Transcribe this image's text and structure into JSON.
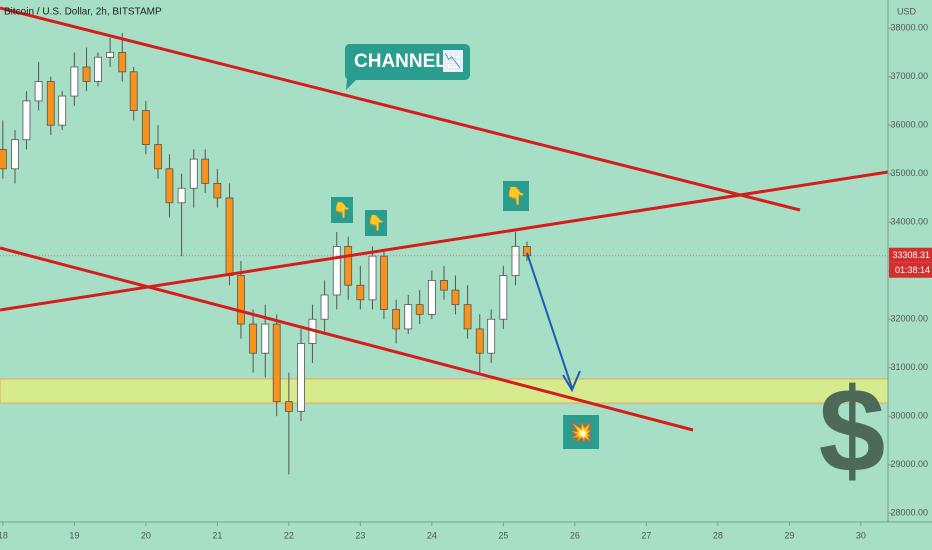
{
  "chart_data": {
    "type": "candlestick",
    "title": "Bitcoin / U.S. Dollar, 2h, BITSTAMP",
    "y_unit": "USD",
    "countdown": "01:38:14",
    "up_color": "#ffffff",
    "down_color": "#f7931a",
    "grid": false,
    "x": [
      18.0,
      18.17,
      18.33,
      18.5,
      18.67,
      18.83,
      19.0,
      19.17,
      19.33,
      19.5,
      19.67,
      19.83,
      20.0,
      20.17,
      20.33,
      20.5,
      20.67,
      20.83,
      21.0,
      21.17,
      21.33,
      21.5,
      21.67,
      21.83,
      22.0,
      22.17,
      22.33,
      22.5,
      22.67,
      22.83,
      23.0,
      23.17,
      23.33,
      23.5,
      23.67,
      23.83,
      24.0,
      24.17,
      24.33,
      24.5,
      24.67,
      24.83,
      25.0,
      25.17,
      25.33
    ],
    "open": [
      35500,
      35100,
      35700,
      36500,
      36900,
      36000,
      36600,
      37200,
      36900,
      37400,
      37500,
      37100,
      36300,
      35600,
      35100,
      34400,
      34700,
      35300,
      34800,
      34500,
      32900,
      31900,
      31300,
      31900,
      30300,
      30100,
      31500,
      32000,
      32500,
      33500,
      32700,
      32400,
      33300,
      32200,
      31800,
      32300,
      32100,
      32800,
      32600,
      32300,
      31800,
      31300,
      32000,
      32900,
      33500
    ],
    "high": [
      36100,
      35900,
      36700,
      37300,
      37000,
      36700,
      37500,
      37600,
      37500,
      37800,
      37900,
      37200,
      36500,
      36000,
      35400,
      35000,
      35500,
      35500,
      35100,
      34800,
      33200,
      32200,
      32300,
      32100,
      30900,
      31800,
      32300,
      32800,
      33800,
      33700,
      33100,
      33500,
      33400,
      32400,
      32500,
      32600,
      33000,
      33100,
      32900,
      32700,
      32100,
      32200,
      33100,
      33800,
      33600
    ],
    "low": [
      34900,
      34800,
      35500,
      36300,
      35800,
      35900,
      36400,
      36700,
      36800,
      37200,
      36900,
      36100,
      35400,
      34900,
      34100,
      33300,
      34300,
      34600,
      34300,
      32700,
      31600,
      30900,
      30800,
      30000,
      28800,
      29900,
      31100,
      31700,
      32200,
      32400,
      32200,
      32200,
      32000,
      31500,
      31700,
      31900,
      32000,
      32400,
      32100,
      31600,
      30900,
      31100,
      31800,
      32700,
      33200
    ],
    "close": [
      35100,
      35700,
      36500,
      36900,
      36000,
      36600,
      37200,
      36900,
      37400,
      37500,
      37100,
      36300,
      35600,
      35100,
      34400,
      34700,
      35300,
      34800,
      34500,
      32900,
      31900,
      31300,
      31900,
      30300,
      30100,
      31500,
      32000,
      32500,
      33500,
      32700,
      32400,
      33300,
      32200,
      31800,
      32300,
      32100,
      32800,
      32600,
      32300,
      31800,
      31300,
      32000,
      32900,
      33500,
      33308.31
    ],
    "xlim": [
      17.96,
      30.38
    ],
    "ylim": [
      27820,
      38580
    ],
    "xticks": [
      18,
      19,
      20,
      21,
      22,
      23,
      24,
      25,
      26,
      27,
      28,
      29,
      30
    ],
    "yticks": [
      {
        "value": 28000,
        "label": "28000.00"
      },
      {
        "value": 29000,
        "label": "29000.00"
      },
      {
        "value": 30000,
        "label": "30000.00"
      },
      {
        "value": 31000,
        "label": "31000.00"
      },
      {
        "value": 32000,
        "label": "32000.00"
      },
      {
        "value": 33000,
        "label": "33000.00"
      },
      {
        "value": 34000,
        "label": "34000.00"
      },
      {
        "value": 35000,
        "label": "35000.00"
      },
      {
        "value": 36000,
        "label": "36000.00"
      },
      {
        "value": 37000,
        "label": "37000.00"
      },
      {
        "value": 38000,
        "label": "38000.00"
      }
    ],
    "annotations": {
      "channel": "CHANNEL",
      "channel_icon": "📉",
      "pointers": [
        "👇",
        "👇",
        "👇"
      ],
      "burst": "💥",
      "symbol": "$"
    }
  }
}
